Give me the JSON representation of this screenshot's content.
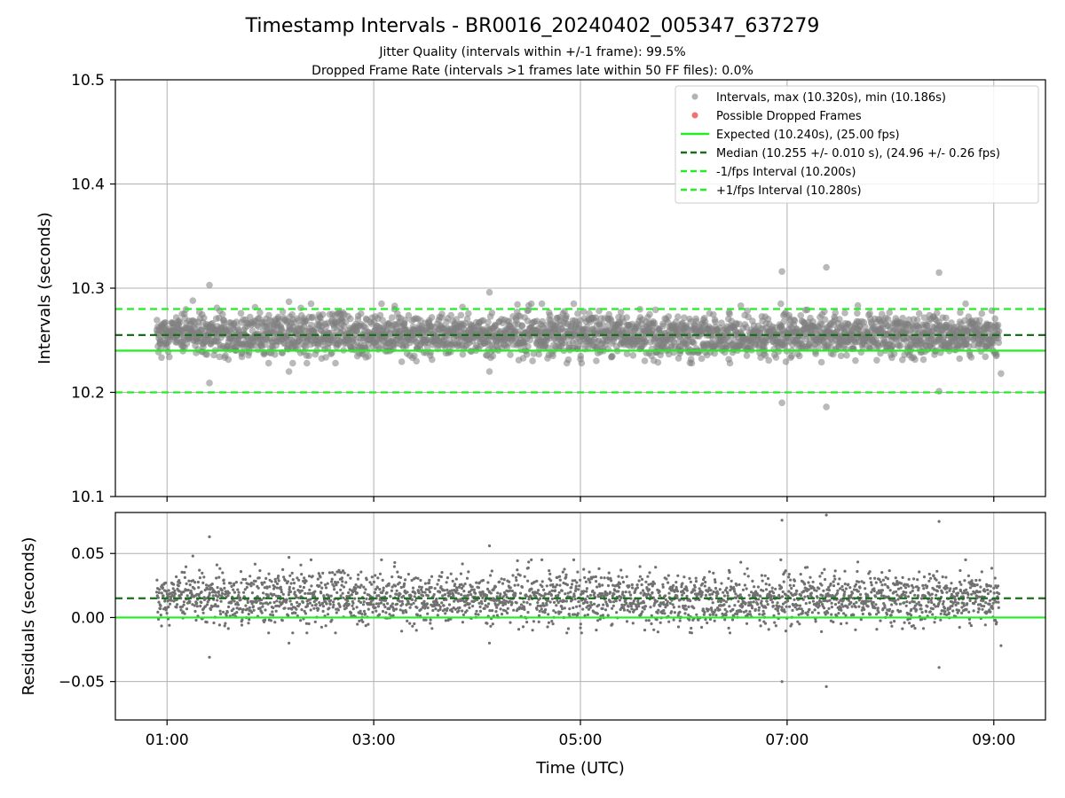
{
  "chart_data": [
    {
      "type": "scatter",
      "title": "Timestamp Intervals - BR0016_20240402_005347_637279",
      "subtitle_lines": [
        "Jitter Quality (intervals within +/-1 frame): 99.5%",
        "Dropped Frame Rate (intervals >1 frames late within 50 FF files): 0.0%"
      ],
      "ylabel": "Intervals (seconds)",
      "xlim_hours": [
        0.5,
        9.5
      ],
      "ylim": [
        10.1,
        10.5
      ],
      "y_ticks": [
        10.1,
        10.2,
        10.3,
        10.4,
        10.5
      ],
      "y_tick_labels": [
        "10.1",
        "10.2",
        "10.3",
        "10.4",
        "10.5"
      ],
      "grid": true,
      "legend_position": "top-right",
      "series": [
        {
          "name": "Intervals, max (10.320s), min (10.186s)",
          "kind": "points",
          "color": "#808080",
          "x_range_hours": [
            0.9,
            9.05
          ],
          "median": 10.255,
          "std": 0.01,
          "outliers": [
            {
              "x": 1.41,
              "y": 10.303
            },
            {
              "x": 1.41,
              "y": 10.209
            },
            {
              "x": 1.25,
              "y": 10.288
            },
            {
              "x": 2.18,
              "y": 10.287
            },
            {
              "x": 2.18,
              "y": 10.22
            },
            {
              "x": 4.12,
              "y": 10.296
            },
            {
              "x": 4.12,
              "y": 10.22
            },
            {
              "x": 6.95,
              "y": 10.316
            },
            {
              "x": 6.95,
              "y": 10.19
            },
            {
              "x": 7.38,
              "y": 10.32
            },
            {
              "x": 7.38,
              "y": 10.186
            },
            {
              "x": 8.47,
              "y": 10.315
            },
            {
              "x": 8.47,
              "y": 10.201
            },
            {
              "x": 9.07,
              "y": 10.218
            }
          ]
        },
        {
          "name": "Possible Dropped Frames",
          "kind": "points",
          "color": "#f06060",
          "points": []
        },
        {
          "name": "Expected (10.240s), (25.00 fps)",
          "kind": "hline",
          "y": 10.24,
          "color": "#22ee22",
          "dash": "solid"
        },
        {
          "name": "Median (10.255 +/- 0.010 s), (24.96 +/- 0.26 fps)",
          "kind": "hline",
          "y": 10.255,
          "color": "#1a6e1a",
          "dash": "dashed"
        },
        {
          "name": "-1/fps Interval (10.200s)",
          "kind": "hline",
          "y": 10.2,
          "color": "#22ee22",
          "dash": "dashed"
        },
        {
          "name": "+1/fps Interval (10.280s)",
          "kind": "hline",
          "y": 10.28,
          "color": "#22ee22",
          "dash": "dashed"
        }
      ]
    },
    {
      "type": "scatter",
      "xlabel": "Time (UTC)",
      "ylabel": "Residuals (seconds)",
      "xlim_hours": [
        0.5,
        9.5
      ],
      "ylim": [
        -0.08,
        0.082
      ],
      "y_ticks": [
        -0.05,
        0.0,
        0.05
      ],
      "y_tick_labels": [
        "−0.05",
        "0.00",
        "0.05"
      ],
      "x_ticks_hours": [
        1,
        3,
        5,
        7,
        9
      ],
      "x_tick_labels": [
        "01:00",
        "03:00",
        "05:00",
        "07:00",
        "09:00"
      ],
      "grid": true,
      "series": [
        {
          "name": "Residuals",
          "kind": "points",
          "color": "#707070",
          "derived_from": "interval - 10.240"
        },
        {
          "name": "Median residual",
          "kind": "hline",
          "y": 0.015,
          "color": "#1a6e1a",
          "dash": "dashed"
        },
        {
          "name": "Zero",
          "kind": "hline",
          "y": 0.0,
          "color": "#22ee22",
          "dash": "solid"
        }
      ]
    }
  ]
}
